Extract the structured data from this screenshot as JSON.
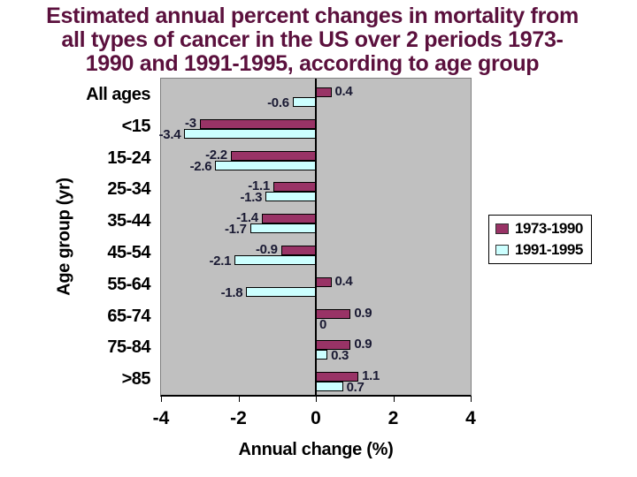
{
  "slide": {
    "title_lines": [
      "Estimated annual percent changes in mortality from",
      "all types of cancer in the US over 2 periods 1973-",
      "1990 and 1991-1995, according to age group"
    ],
    "title_color": "#5B103D"
  },
  "chart_data": {
    "type": "bar",
    "orientation": "horizontal",
    "title": "Estimated annual percent changes in mortality from all types of cancer in the US over 2 periods 1973-1990 and 1991-1995, according to age group",
    "categories": [
      "All ages",
      "<15",
      "15-24",
      "25-34",
      "35-44",
      "45-54",
      "55-64",
      "65-74",
      "75-84",
      ">85"
    ],
    "series": [
      {
        "name": "1973-1990",
        "color": "#993366",
        "values": [
          0.4,
          -3,
          -2.2,
          -1.1,
          -1.4,
          -0.9,
          0.4,
          0.9,
          0.9,
          1.1
        ]
      },
      {
        "name": "1991-1995",
        "color": "#CCFFFF",
        "values": [
          -0.6,
          -3.4,
          -2.6,
          -1.3,
          -1.7,
          -2.1,
          -1.8,
          0,
          0.3,
          0.7
        ]
      }
    ],
    "xlabel": "Annual change (%)",
    "ylabel": "Age group (yr)",
    "xlim": [
      -4,
      4
    ],
    "xticks": [
      -4,
      -2,
      0,
      2,
      4
    ],
    "data_labels": true,
    "grid": false,
    "legend_position": "right",
    "plot_bg": "#C0C0C0",
    "bar_border_color": "#000000",
    "axis_color": "#000000",
    "data_label_color": "#1A1A33"
  }
}
